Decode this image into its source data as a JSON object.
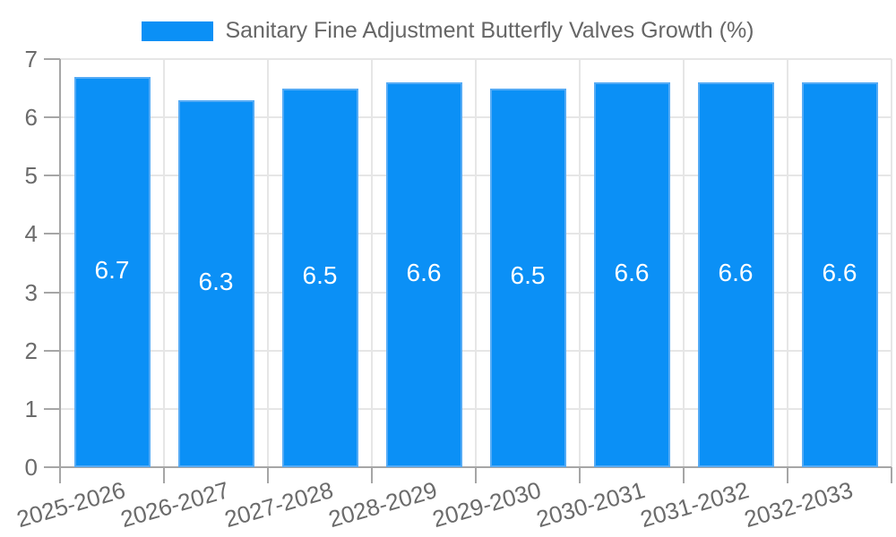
{
  "chart_data": {
    "type": "bar",
    "title": "Sanitary Fine Adjustment Butterfly Valves Growth (%)",
    "legend_position": "top",
    "categories": [
      "2025-2026",
      "2026-2027",
      "2027-2028",
      "2028-2029",
      "2029-2030",
      "2030-2031",
      "2031-2032",
      "2032-2033"
    ],
    "values": [
      6.7,
      6.3,
      6.5,
      6.6,
      6.5,
      6.6,
      6.6,
      6.6
    ],
    "value_labels": [
      "6.7",
      "6.3",
      "6.5",
      "6.6",
      "6.5",
      "6.6",
      "6.6",
      "6.6"
    ],
    "ylim": [
      0,
      7
    ],
    "y_ticks": [
      0,
      1,
      2,
      3,
      4,
      5,
      6,
      7
    ],
    "grid": true,
    "xlabel": "",
    "ylabel": "",
    "bar_color": "#0b90f6",
    "bar_border_color": "#55abf5",
    "value_label_color": "#ffffff"
  },
  "colors": {
    "background": "#ffffff",
    "grid": "#e6e6e6",
    "axis": "#a6a6a6",
    "tick_text": "#6b6b6b",
    "legend_text": "#666666"
  }
}
